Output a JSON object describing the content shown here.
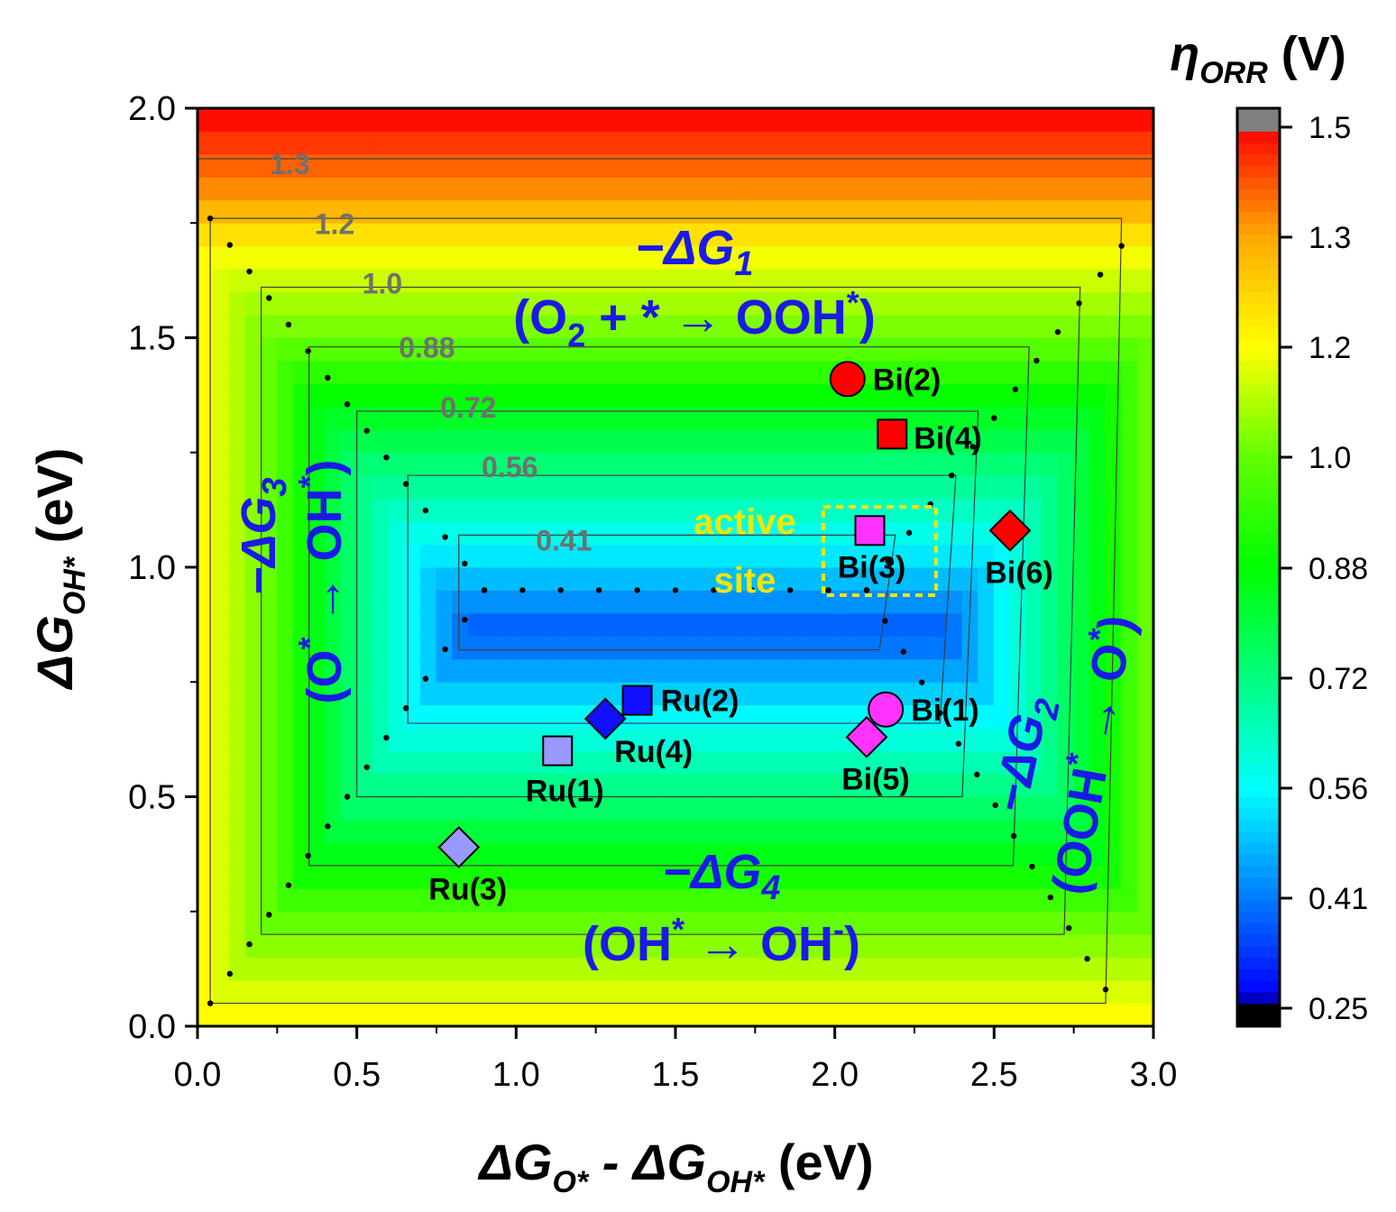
{
  "chart_data": {
    "type": "heatmap",
    "title": "",
    "xlabel": "ΔG_O* - ΔG_OH* (eV)",
    "ylabel": "ΔG_OH* (eV)",
    "xlim": [
      0.0,
      3.0
    ],
    "ylim": [
      0.0,
      2.0
    ],
    "x_ticks": [
      "0.0",
      "0.5",
      "1.0",
      "1.5",
      "2.0",
      "2.5",
      "3.0"
    ],
    "y_ticks": [
      "0.0",
      "0.5",
      "1.0",
      "1.5",
      "2.0"
    ],
    "colorbar": {
      "label": "η_ORR (V)",
      "range": [
        0.25,
        1.53
      ],
      "ticks": [
        "0.25",
        "0.41",
        "0.56",
        "0.72",
        "0.88",
        "1.0",
        "1.2",
        "1.3",
        "1.5"
      ],
      "tick_values": [
        0.25,
        0.41,
        0.56,
        0.72,
        0.88,
        1.0,
        1.2,
        1.3,
        1.5
      ],
      "colors": [
        "#000000",
        "#0000ff",
        "#00ffff",
        "#00ff00",
        "#ffff00",
        "#ff0000",
        "#808080"
      ]
    },
    "contour_labels": [
      "1.3",
      "1.2",
      "1.0",
      "0.88",
      "0.72",
      "0.56",
      "0.41"
    ],
    "contour_values": [
      1.3,
      1.2,
      1.0,
      0.88,
      0.72,
      0.56,
      0.41
    ],
    "points": [
      {
        "label": "Bi(2)",
        "x": 2.04,
        "y": 1.41,
        "marker": "circle",
        "color": "#ff0000"
      },
      {
        "label": "Bi(4)",
        "x": 2.18,
        "y": 1.29,
        "marker": "square",
        "color": "#ff0000"
      },
      {
        "label": "Bi(3)",
        "x": 2.11,
        "y": 1.08,
        "marker": "square",
        "color": "#ff33ff"
      },
      {
        "label": "Bi(6)",
        "x": 2.55,
        "y": 1.08,
        "marker": "diamond",
        "color": "#ff0000"
      },
      {
        "label": "Bi(1)",
        "x": 2.16,
        "y": 0.69,
        "marker": "circle",
        "color": "#ff33ff"
      },
      {
        "label": "Bi(5)",
        "x": 2.1,
        "y": 0.63,
        "marker": "diamond",
        "color": "#ff33ff"
      },
      {
        "label": "Ru(2)",
        "x": 1.38,
        "y": 0.71,
        "marker": "square",
        "color": "#1010ff"
      },
      {
        "label": "Ru(4)",
        "x": 1.28,
        "y": 0.67,
        "marker": "diamond",
        "color": "#1010ff"
      },
      {
        "label": "Ru(1)",
        "x": 1.13,
        "y": 0.6,
        "marker": "square",
        "color": "#9999ff"
      },
      {
        "label": "Ru(3)",
        "x": 0.82,
        "y": 0.39,
        "marker": "diamond",
        "color": "#9999ff"
      }
    ],
    "annotations": {
      "g1": {
        "prefix": "−ΔG",
        "sub": "1"
      },
      "g1_rxn": {
        "a": "(O",
        "a_sub": "2",
        "b": " + * → OOH",
        "b_sup": "*",
        "c": ")"
      },
      "g4": {
        "prefix": "−ΔG",
        "sub": "4"
      },
      "g4_rxn": {
        "a": "(OH",
        "a_sup": "*",
        "b": " → OH",
        "b_sup": "-",
        "c": ")"
      },
      "g3": {
        "prefix": "−ΔG",
        "sub": "3"
      },
      "g3_rxn": {
        "a": "(O",
        "a_sup": "*",
        "b": " → OH",
        "b_sup": "*",
        "c": ")"
      },
      "g2": {
        "prefix": "−ΔG",
        "sub": "2"
      },
      "g2_rxn": {
        "a": "(OOH",
        "a_sup": "*",
        "b": " → O",
        "b_sup": "*",
        "c": ")"
      },
      "active_line1": "active",
      "active_line2": "site"
    },
    "axis_text": {
      "x_main_a": "ΔG",
      "x_sub_a": "O*",
      "x_mid": " - ΔG",
      "x_sub_b": "OH*",
      "x_unit": " (eV)",
      "y_main": "ΔG",
      "y_sub": "OH*",
      "y_unit": " (eV)",
      "cb_eta": "η",
      "cb_sub": "ORR",
      "cb_unit": " (V)"
    }
  }
}
